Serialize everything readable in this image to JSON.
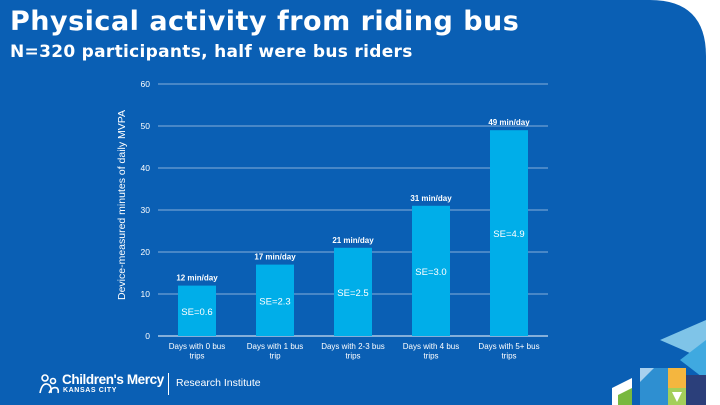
{
  "slide": {
    "title": "Physical activity from riding bus",
    "subtitle": "N=320 participants, half were bus riders"
  },
  "logo": {
    "brand": "Children's Mercy",
    "city": "KANSAS CITY",
    "institute": "Research Institute"
  },
  "colors": {
    "background": "#0a5fb4",
    "bar": "#00aee9",
    "grid": "#ffffff",
    "text": "#ffffff"
  },
  "chart_data": {
    "type": "bar",
    "title": "",
    "xlabel": "",
    "ylabel": "Device-measured minutes of daily MVPA",
    "ylim": [
      0,
      60
    ],
    "yticks": [
      0,
      10,
      20,
      30,
      40,
      50,
      60
    ],
    "grid": true,
    "legend": "none",
    "categories": [
      [
        "Days with 0 bus",
        "trips"
      ],
      [
        "Days with 1 bus",
        "trip"
      ],
      [
        "Days with 2-3 bus",
        "trips"
      ],
      [
        "Days with 4 bus",
        "trips"
      ],
      [
        "Days with 5+ bus",
        "trips"
      ]
    ],
    "values": [
      12,
      17,
      21,
      31,
      49
    ],
    "value_labels": [
      "12 min/day",
      "17 min/day",
      "21 min/day",
      "31 min/day",
      "49 min/day"
    ],
    "se_labels": [
      "SE=0.6",
      "SE=2.3",
      "SE=2.5",
      "SE=3.0",
      "SE=4.9"
    ]
  }
}
